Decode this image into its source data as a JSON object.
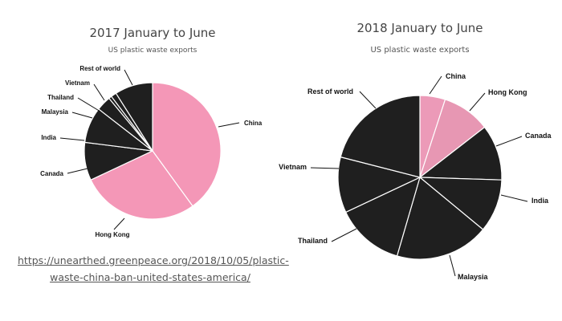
{
  "chart_data": [
    {
      "type": "pie",
      "title": "2017 January to June",
      "subtitle": "US plastic waste exports",
      "categories": [
        "China",
        "Hong Kong",
        "Canada",
        "India",
        "Malaysia",
        "Thailand",
        "Vietnam",
        "Rest of world"
      ],
      "values": [
        40.0,
        28.0,
        9.0,
        8.5,
        3.5,
        0.7,
        1.3,
        9.0
      ],
      "colors": [
        "#f497b7",
        "#f497b7",
        "#1f1f1f",
        "#1f1f1f",
        "#1f1f1f",
        "#1f1f1f",
        "#1f1f1f",
        "#1f1f1f"
      ],
      "start_angle_deg": 0,
      "legend": "none"
    },
    {
      "type": "pie",
      "title": "2018 January to June",
      "subtitle": "US plastic waste exports",
      "categories": [
        "China",
        "Hong Kong",
        "Canada",
        "India",
        "Malaysia",
        "Thailand",
        "Vietnam",
        "Rest of world"
      ],
      "values": [
        5.0,
        9.5,
        11.0,
        10.5,
        18.5,
        13.5,
        11.0,
        21.0
      ],
      "colors": [
        "#ec9ab8",
        "#e797b3",
        "#1f1f1f",
        "#1f1f1f",
        "#1f1f1f",
        "#1f1f1f",
        "#1f1f1f",
        "#1f1f1f"
      ],
      "start_angle_deg": 0,
      "legend": "none"
    }
  ],
  "source": {
    "line1": "https://unearthed.greenpeace.org/2018/10/05/plastic-",
    "line2": "waste-china-ban-united-states-america/"
  }
}
